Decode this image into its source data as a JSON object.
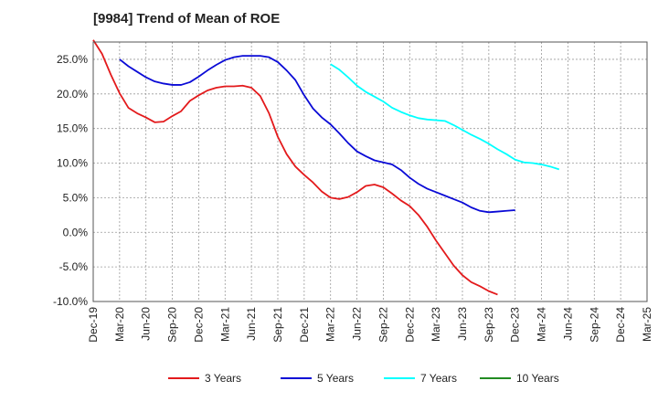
{
  "chart_data": {
    "type": "line",
    "title": "[9984]  Trend of Mean of ROE",
    "xlabel": "",
    "ylabel": "",
    "ylim": [
      -10,
      27.5
    ],
    "yticks": [
      -10,
      -5,
      0,
      5,
      10,
      15,
      20,
      25
    ],
    "ytick_labels": [
      "-10.0%",
      "-5.0%",
      "0.0%",
      "5.0%",
      "10.0%",
      "15.0%",
      "20.0%",
      "25.0%"
    ],
    "xticks": [
      "Dec-19",
      "Mar-20",
      "Jun-20",
      "Sep-20",
      "Dec-20",
      "Mar-21",
      "Jun-21",
      "Sep-21",
      "Dec-21",
      "Mar-22",
      "Jun-22",
      "Sep-22",
      "Dec-22",
      "Mar-23",
      "Jun-23",
      "Sep-23",
      "Dec-23",
      "Mar-24",
      "Jun-24",
      "Sep-24",
      "Dec-24",
      "Mar-25"
    ],
    "grid": true,
    "legend_position": "bottom",
    "series": [
      {
        "name": "3 Years",
        "color": "#e31a1c",
        "start_index": 0,
        "values": [
          27.8,
          25.8,
          22.8,
          20.1,
          18.0,
          17.2,
          16.6,
          15.9,
          16.0,
          16.8,
          17.5,
          19.0,
          19.8,
          20.5,
          20.9,
          21.1,
          21.1,
          21.2,
          20.9,
          19.7,
          17.2,
          13.8,
          11.3,
          9.5,
          8.3,
          7.2,
          5.9,
          5.0,
          4.8,
          5.1,
          5.8,
          6.7,
          6.9,
          6.5,
          5.6,
          4.6,
          3.8,
          2.5,
          0.8,
          -1.2,
          -3.0,
          -4.8,
          -6.2,
          -7.2,
          -7.8,
          -8.5,
          -9.0
        ]
      },
      {
        "name": "5 Years",
        "color": "#0a0ad6",
        "start_index": 3,
        "values": [
          25.0,
          24.0,
          23.2,
          22.4,
          21.8,
          21.5,
          21.3,
          21.3,
          21.7,
          22.5,
          23.4,
          24.2,
          24.9,
          25.3,
          25.5,
          25.5,
          25.5,
          25.3,
          24.6,
          23.4,
          22.0,
          19.8,
          17.9,
          16.6,
          15.6,
          14.3,
          12.9,
          11.7,
          11.0,
          10.4,
          10.1,
          9.8,
          9.0,
          7.9,
          7.0,
          6.3,
          5.8,
          5.3,
          4.8,
          4.3,
          3.6,
          3.1,
          2.9,
          3.0,
          3.1,
          3.2
        ]
      },
      {
        "name": "7 Years",
        "color": "#00ffff",
        "start_index": 27,
        "values": [
          24.3,
          23.5,
          22.4,
          21.2,
          20.3,
          19.6,
          18.9,
          18.0,
          17.4,
          16.9,
          16.5,
          16.3,
          16.2,
          16.1,
          15.5,
          14.8,
          14.1,
          13.5,
          12.8,
          12.0,
          11.3,
          10.5,
          10.1,
          10.0,
          9.8,
          9.5,
          9.1
        ]
      },
      {
        "name": "10 Years",
        "color": "#228b22",
        "start_index": 0,
        "values": []
      }
    ]
  }
}
